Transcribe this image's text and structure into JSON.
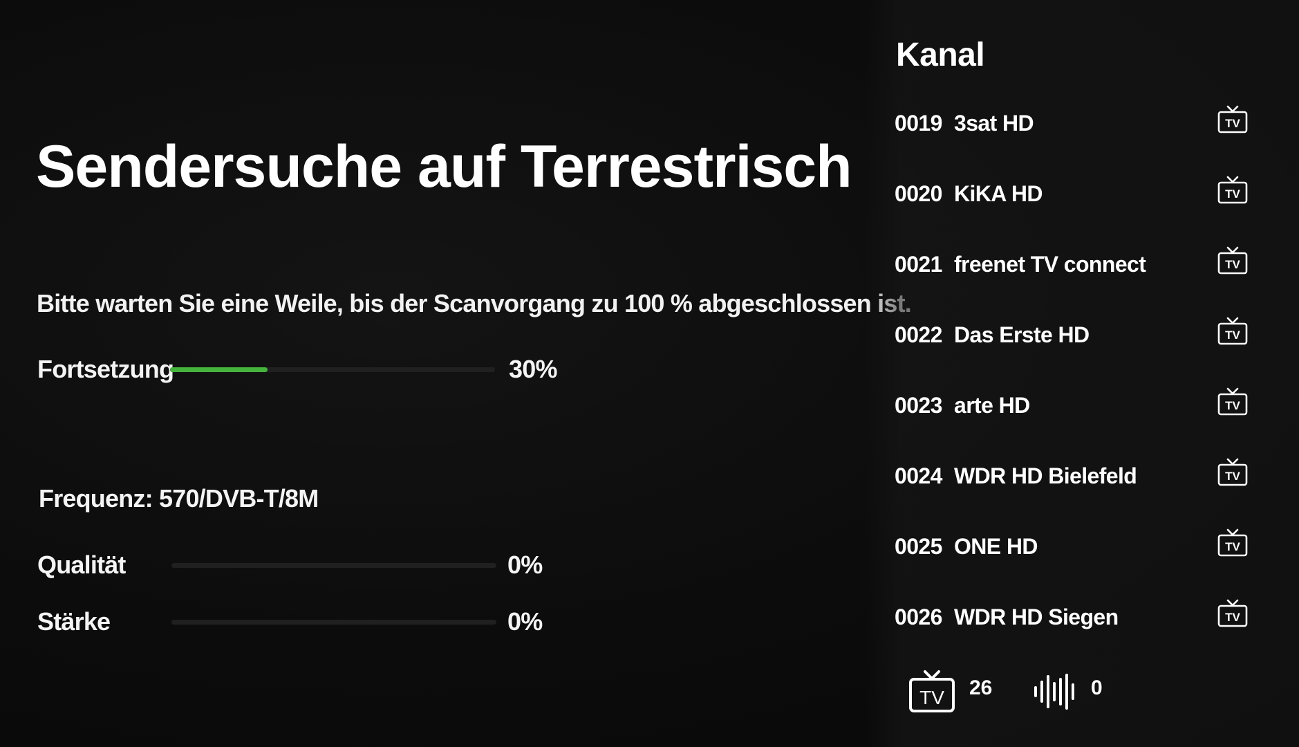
{
  "scan": {
    "title": "Sendersuche auf Terrestrisch",
    "instruction": "Bitte warten Sie eine Weile, bis der Scanvorgang zu 100 % abgeschlossen ist.",
    "progress": {
      "label": "Fortsetzung",
      "value_text": "30%",
      "value": 0.3
    },
    "frequency": "Frequenz: 570/DVB-T/8M",
    "quality": {
      "label": "Qualität",
      "value_text": "0%",
      "value": 0
    },
    "strength": {
      "label": "Stärke",
      "value_text": "0%",
      "value": 0
    }
  },
  "channels": {
    "title": "Kanal",
    "items": [
      {
        "number": "0019",
        "name": "3sat HD",
        "icon": "tv-icon"
      },
      {
        "number": "0020",
        "name": "KiKA HD",
        "icon": "tv-icon"
      },
      {
        "number": "0021",
        "name": "freenet TV connect",
        "icon": "tv-icon"
      },
      {
        "number": "0022",
        "name": "Das Erste HD",
        "icon": "tv-icon"
      },
      {
        "number": "0023",
        "name": "arte HD",
        "icon": "tv-icon"
      },
      {
        "number": "0024",
        "name": "WDR HD Bielefeld",
        "icon": "tv-icon"
      },
      {
        "number": "0025",
        "name": "ONE HD",
        "icon": "tv-icon"
      },
      {
        "number": "0026",
        "name": "WDR HD Siegen",
        "icon": "tv-icon"
      }
    ],
    "summary": {
      "tv_icon": "tv-icon",
      "tv_count": "26",
      "radio_icon": "radio-waveform-icon",
      "radio_count": "0"
    }
  },
  "colors": {
    "background": "#0b0b0b",
    "progress_fill": "#45b43c",
    "track": "#202020",
    "text": "#ffffff"
  }
}
